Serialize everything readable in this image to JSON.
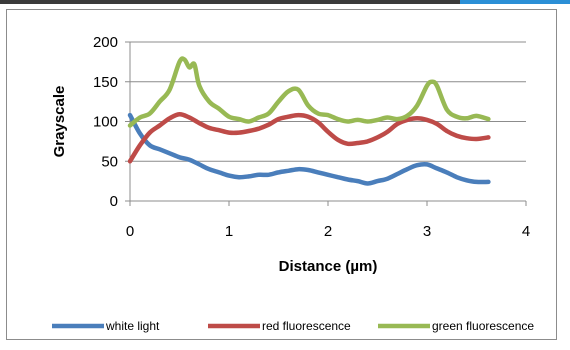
{
  "chart_data": {
    "type": "line",
    "title": "",
    "xlabel": "Distance (µm)",
    "ylabel": "Grayscale",
    "xlim": [
      0,
      4
    ],
    "ylim": [
      0,
      200
    ],
    "xticks": [
      "0",
      "1",
      "2",
      "3",
      "4"
    ],
    "yticks": [
      "0",
      "50",
      "100",
      "150",
      "200"
    ],
    "grid": "horizontal",
    "legend_position": "bottom",
    "series": [
      {
        "name": "white light",
        "color": "#4a7ebb",
        "x": [
          0,
          0.1,
          0.2,
          0.3,
          0.4,
          0.5,
          0.6,
          0.7,
          0.8,
          0.9,
          1.0,
          1.1,
          1.2,
          1.3,
          1.4,
          1.5,
          1.6,
          1.7,
          1.8,
          1.9,
          2.0,
          2.1,
          2.2,
          2.3,
          2.4,
          2.5,
          2.6,
          2.7,
          2.8,
          2.9,
          3.0,
          3.1,
          3.2,
          3.3,
          3.4,
          3.5,
          3.62
        ],
        "y": [
          108,
          85,
          70,
          65,
          60,
          55,
          52,
          46,
          40,
          36,
          32,
          30,
          31,
          33,
          33,
          36,
          38,
          40,
          39,
          36,
          33,
          30,
          27,
          25,
          22,
          25,
          28,
          34,
          40,
          45,
          46,
          41,
          36,
          30,
          26,
          24,
          24
        ]
      },
      {
        "name": "red fluorescence",
        "color": "#be4b48",
        "x": [
          0,
          0.1,
          0.2,
          0.3,
          0.4,
          0.5,
          0.6,
          0.7,
          0.8,
          0.9,
          1.0,
          1.1,
          1.2,
          1.3,
          1.4,
          1.5,
          1.6,
          1.7,
          1.8,
          1.9,
          2.0,
          2.1,
          2.2,
          2.3,
          2.4,
          2.5,
          2.6,
          2.7,
          2.8,
          2.9,
          3.0,
          3.1,
          3.2,
          3.3,
          3.4,
          3.5,
          3.62
        ],
        "y": [
          50,
          70,
          86,
          95,
          104,
          109,
          105,
          98,
          92,
          89,
          86,
          86,
          88,
          91,
          96,
          103,
          106,
          108,
          106,
          99,
          87,
          77,
          72,
          73,
          75,
          80,
          87,
          97,
          102,
          104,
          102,
          97,
          88,
          82,
          79,
          78,
          80
        ]
      },
      {
        "name": "green fluorescence",
        "color": "#98b954",
        "x": [
          0,
          0.1,
          0.2,
          0.3,
          0.4,
          0.5,
          0.55,
          0.6,
          0.65,
          0.7,
          0.8,
          0.9,
          1.0,
          1.1,
          1.2,
          1.3,
          1.4,
          1.5,
          1.6,
          1.7,
          1.8,
          1.9,
          2.0,
          2.1,
          2.2,
          2.3,
          2.4,
          2.5,
          2.6,
          2.7,
          2.8,
          2.9,
          3.0,
          3.05,
          3.1,
          3.2,
          3.3,
          3.4,
          3.5,
          3.62
        ],
        "y": [
          95,
          105,
          110,
          125,
          140,
          175,
          178,
          168,
          172,
          145,
          125,
          116,
          106,
          103,
          100,
          105,
          110,
          125,
          138,
          140,
          120,
          110,
          108,
          103,
          100,
          102,
          100,
          102,
          105,
          103,
          107,
          120,
          145,
          150,
          145,
          115,
          106,
          104,
          107,
          103
        ]
      }
    ]
  }
}
